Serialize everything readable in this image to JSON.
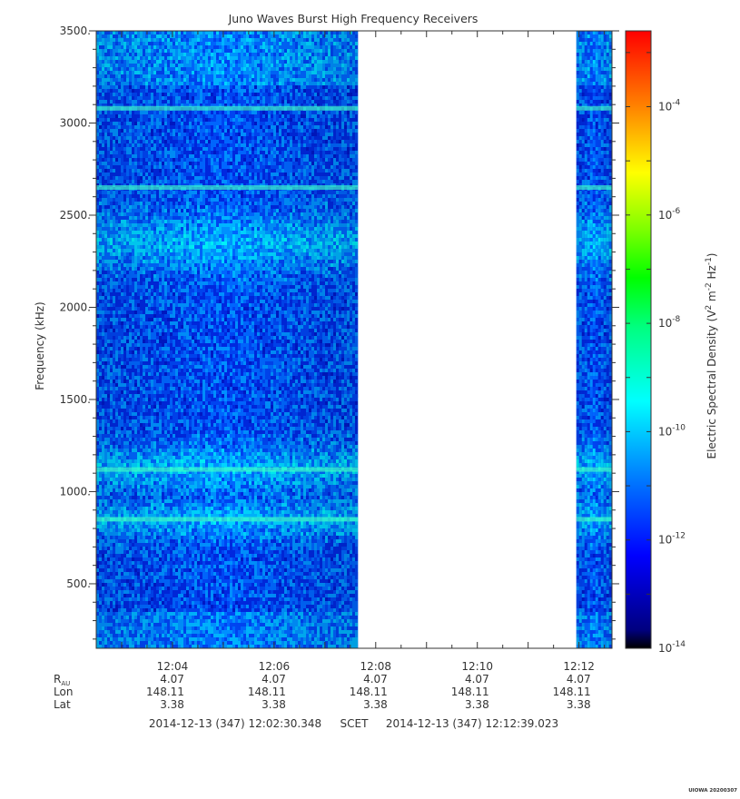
{
  "chart_data": {
    "type": "heatmap",
    "title": "Juno Waves Burst High Frequency Receivers",
    "ylabel": "Frequency (kHz)",
    "ylim": [
      150,
      3500
    ],
    "y_ticks": [
      "500.",
      "1000.",
      "1500.",
      "2000.",
      "2500.",
      "3000.",
      "3500."
    ],
    "y_tick_values": [
      500,
      1000,
      1500,
      2000,
      2500,
      3000,
      3500
    ],
    "xlim_minutes": [
      2.5,
      12.65
    ],
    "x_ticks": [
      "12:04",
      "12:06",
      "12:08",
      "12:10",
      "12:12"
    ],
    "x_tick_minutes": [
      4,
      6,
      8,
      10,
      12
    ],
    "data_gaps_minutes": [
      [
        7.65,
        11.95
      ]
    ],
    "emission_lines_khz": [
      3080,
      2650,
      1120,
      850
    ],
    "enhanced_bands_khz": [
      [
        2200,
        2500
      ],
      [
        1000,
        1250
      ],
      [
        750,
        950
      ]
    ],
    "colorbar": {
      "label": "Electric Spectral Density (V² m⁻² Hz⁻¹)",
      "label_parts": [
        "Electric Spectral Density (V",
        "2",
        " m",
        "-2",
        " Hz",
        "-1",
        ")"
      ],
      "scale": "log",
      "range_exponent": [
        -14,
        -2.6
      ],
      "ticks": [
        {
          "base": "10",
          "exp": "-4",
          "value": -4
        },
        {
          "base": "10",
          "exp": "-6",
          "value": -6
        },
        {
          "base": "10",
          "exp": "-8",
          "value": -8
        },
        {
          "base": "10",
          "exp": "-10",
          "value": -10
        },
        {
          "base": "10",
          "exp": "-12",
          "value": -12
        },
        {
          "base": "10",
          "exp": "-14",
          "value": -14
        }
      ],
      "colors": [
        "#000000",
        "#000080",
        "#0000ff",
        "#0080ff",
        "#00ffff",
        "#00ff80",
        "#00ff00",
        "#80ff00",
        "#ffff00",
        "#ff8000",
        "#ff0000"
      ]
    },
    "ephemeris": {
      "rows": [
        {
          "label": "R",
          "sub": "AU",
          "values": [
            "4.07",
            "4.07",
            "4.07",
            "4.07",
            "4.07"
          ]
        },
        {
          "label": "Lon",
          "sub": "",
          "values": [
            "148.11",
            "148.11",
            "148.11",
            "148.11",
            "148.11"
          ]
        },
        {
          "label": "Lat",
          "sub": "",
          "values": [
            "3.38",
            "3.38",
            "3.38",
            "3.38",
            "3.38"
          ]
        }
      ]
    },
    "time_range": {
      "start": "2014-12-13 (347) 12:02:30.348",
      "frame": "SCET",
      "end": "2014-12-13 (347) 12:12:39.023"
    },
    "footer_stamp": "UIOWA 20200307"
  }
}
